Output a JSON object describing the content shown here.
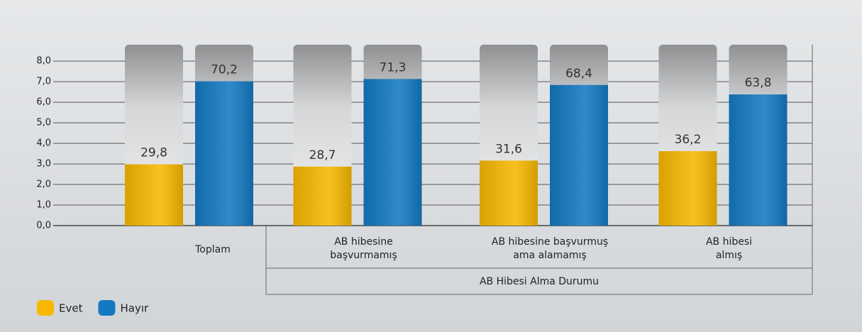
{
  "chart_data": {
    "type": "bar",
    "categories": [
      [
        "Toplam"
      ],
      [
        "AB hibesine",
        "başvurmamış"
      ],
      [
        "AB hibesine başvurmuş",
        "ama alamamış"
      ],
      [
        "AB hibesi",
        "almış"
      ]
    ],
    "group_label": "AB Hibesi Alma Durumu",
    "series": [
      {
        "name": "Evet",
        "color": "#f7b800",
        "values": [
          2.98,
          2.87,
          3.16,
          3.62
        ],
        "value_labels": [
          "29,8",
          "28,7",
          "31,6",
          "36,2"
        ]
      },
      {
        "name": "Hayır",
        "color": "#1479c2",
        "values": [
          7.02,
          7.13,
          6.84,
          6.38
        ],
        "value_labels": [
          "70,2",
          "71,3",
          "68,4",
          "63,8"
        ]
      }
    ],
    "ylim": [
      0,
      8.8
    ],
    "yticks": [
      {
        "value": 0,
        "label": "0,0"
      },
      {
        "value": 1,
        "label": "1,0"
      },
      {
        "value": 2,
        "label": "2,0"
      },
      {
        "value": 3,
        "label": "3,0"
      },
      {
        "value": 4,
        "label": "4,0"
      },
      {
        "value": 5,
        "label": "5,0"
      },
      {
        "value": 6,
        "label": "6,0"
      },
      {
        "value": 7,
        "label": "7,0"
      },
      {
        "value": 8,
        "label": "8,0"
      }
    ],
    "grid": true,
    "legend": "bottom-left"
  }
}
